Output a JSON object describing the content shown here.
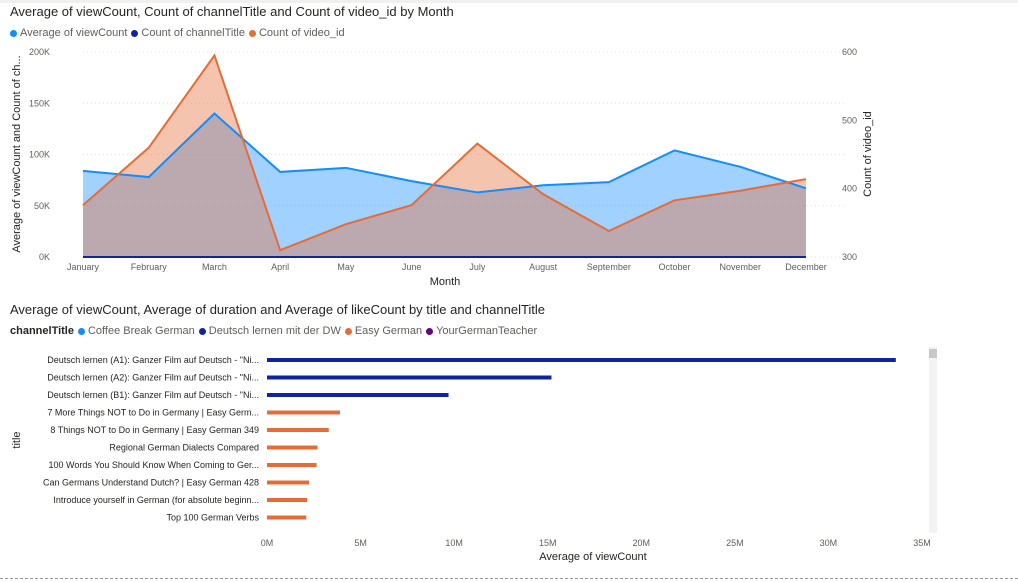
{
  "chart_data": [
    {
      "type": "line",
      "title": "Average of viewCount, Count of channelTitle and Count of video_id by Month",
      "xlabel": "Month",
      "ylabel": "Average of viewCount and Count of ch...",
      "y2label": "Count of video_id",
      "categories": [
        "January",
        "February",
        "March",
        "April",
        "May",
        "June",
        "July",
        "August",
        "September",
        "October",
        "November",
        "December"
      ],
      "y_ticks": [
        "0K",
        "50K",
        "100K",
        "150K",
        "200K"
      ],
      "y2_ticks": [
        "300",
        "400",
        "500",
        "600"
      ],
      "ylim": [
        0,
        200000
      ],
      "y2lim": [
        300,
        600
      ],
      "series": [
        {
          "name": "Average of viewCount",
          "axis": "left",
          "color": "#118DFF",
          "values": [
            84000,
            78000,
            140000,
            83000,
            87000,
            74000,
            63000,
            70000,
            73000,
            104000,
            88000,
            67000
          ]
        },
        {
          "name": "Count of channelTitle",
          "axis": "left",
          "color": "#12239E",
          "values": [
            4,
            4,
            4,
            4,
            4,
            4,
            4,
            4,
            4,
            4,
            4,
            4
          ]
        },
        {
          "name": "Count of video_id",
          "axis": "right",
          "color": "#E66C37",
          "values": [
            376,
            460,
            595,
            310,
            348,
            376,
            466,
            392,
            338,
            383,
            397,
            414
          ]
        }
      ],
      "grid": true,
      "legend": "top-left"
    },
    {
      "type": "bar",
      "orientation": "horizontal",
      "title": "Average of viewCount, Average of duration and Average of likeCount by title and channelTitle",
      "xlabel": "Average of viewCount",
      "ylabel": "title",
      "legend_title": "channelTitle",
      "legend": [
        {
          "name": "Coffee Break German",
          "color": "#118DFF"
        },
        {
          "name": "Deutsch lernen mit der DW",
          "color": "#12239E"
        },
        {
          "name": "Easy German",
          "color": "#E66C37"
        },
        {
          "name": "YourGermanTeacher",
          "color": "#6B007B"
        }
      ],
      "x_ticks": [
        "0M",
        "5M",
        "10M",
        "15M",
        "20M",
        "25M",
        "30M",
        "35M"
      ],
      "xlim": [
        0,
        35000000
      ],
      "bars": [
        {
          "title": "Deutsch lernen (A1): Ganzer Film auf Deutsch - \"Ni...",
          "channel": "Deutsch lernen mit der DW",
          "value": 33600000
        },
        {
          "title": "Deutsch lernen (A2): Ganzer Film auf Deutsch - \"Ni...",
          "channel": "Deutsch lernen mit der DW",
          "value": 15200000
        },
        {
          "title": "Deutsch lernen (B1): Ganzer Film auf Deutsch - \"Ni...",
          "channel": "Deutsch lernen mit der DW",
          "value": 9700000
        },
        {
          "title": "7 More Things NOT to Do in Germany | Easy Germ...",
          "channel": "Easy German",
          "value": 3900000
        },
        {
          "title": "8 Things NOT to Do in Germany | Easy German 349",
          "channel": "Easy German",
          "value": 3300000
        },
        {
          "title": "Regional German Dialects Compared",
          "channel": "Easy German",
          "value": 2700000
        },
        {
          "title": "100 Words You Should Know When Coming to Ger...",
          "channel": "Easy German",
          "value": 2650000
        },
        {
          "title": "Can Germans Understand Dutch? | Easy German 428",
          "channel": "Easy German",
          "value": 2250000
        },
        {
          "title": "Introduce yourself in German (for absolute beginn...",
          "channel": "Easy German",
          "value": 2150000
        },
        {
          "title": "Top 100 German Verbs",
          "channel": "Easy German",
          "value": 2100000
        }
      ]
    }
  ]
}
